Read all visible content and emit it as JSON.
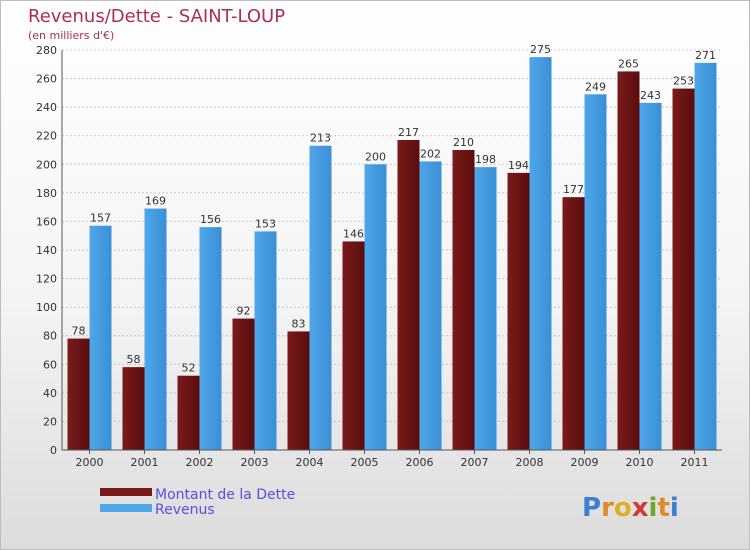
{
  "chart_data": {
    "type": "bar",
    "title": "Revenus/Dette - SAINT-LOUP",
    "subtitle": "(en milliers d'€)",
    "categories": [
      "2000",
      "2001",
      "2002",
      "2003",
      "2004",
      "2005",
      "2006",
      "2007",
      "2008",
      "2009",
      "2010",
      "2011"
    ],
    "series": [
      {
        "name": "Montant de la Dette",
        "color": "#7a1a1a",
        "values": [
          78,
          58,
          52,
          92,
          83,
          146,
          217,
          210,
          194,
          177,
          265,
          253
        ]
      },
      {
        "name": "Revenus",
        "color": "#4fa6e8",
        "values": [
          157,
          169,
          156,
          153,
          213,
          200,
          202,
          198,
          275,
          249,
          243,
          271
        ]
      }
    ],
    "ylim": [
      0,
      280
    ],
    "yticks": [
      0,
      20,
      40,
      60,
      80,
      100,
      120,
      140,
      160,
      180,
      200,
      220,
      240,
      260,
      280
    ],
    "grid": true,
    "legend_position": "bottom-left"
  },
  "logo": {
    "letters": [
      "P",
      "r",
      "o",
      "x",
      "i",
      "t",
      "i"
    ],
    "colors": [
      "#3a7fd0",
      "#e08a2a",
      "#e0b020",
      "#d03a3a",
      "#6aa82a",
      "#e08a2a",
      "#3a7fd0"
    ]
  }
}
